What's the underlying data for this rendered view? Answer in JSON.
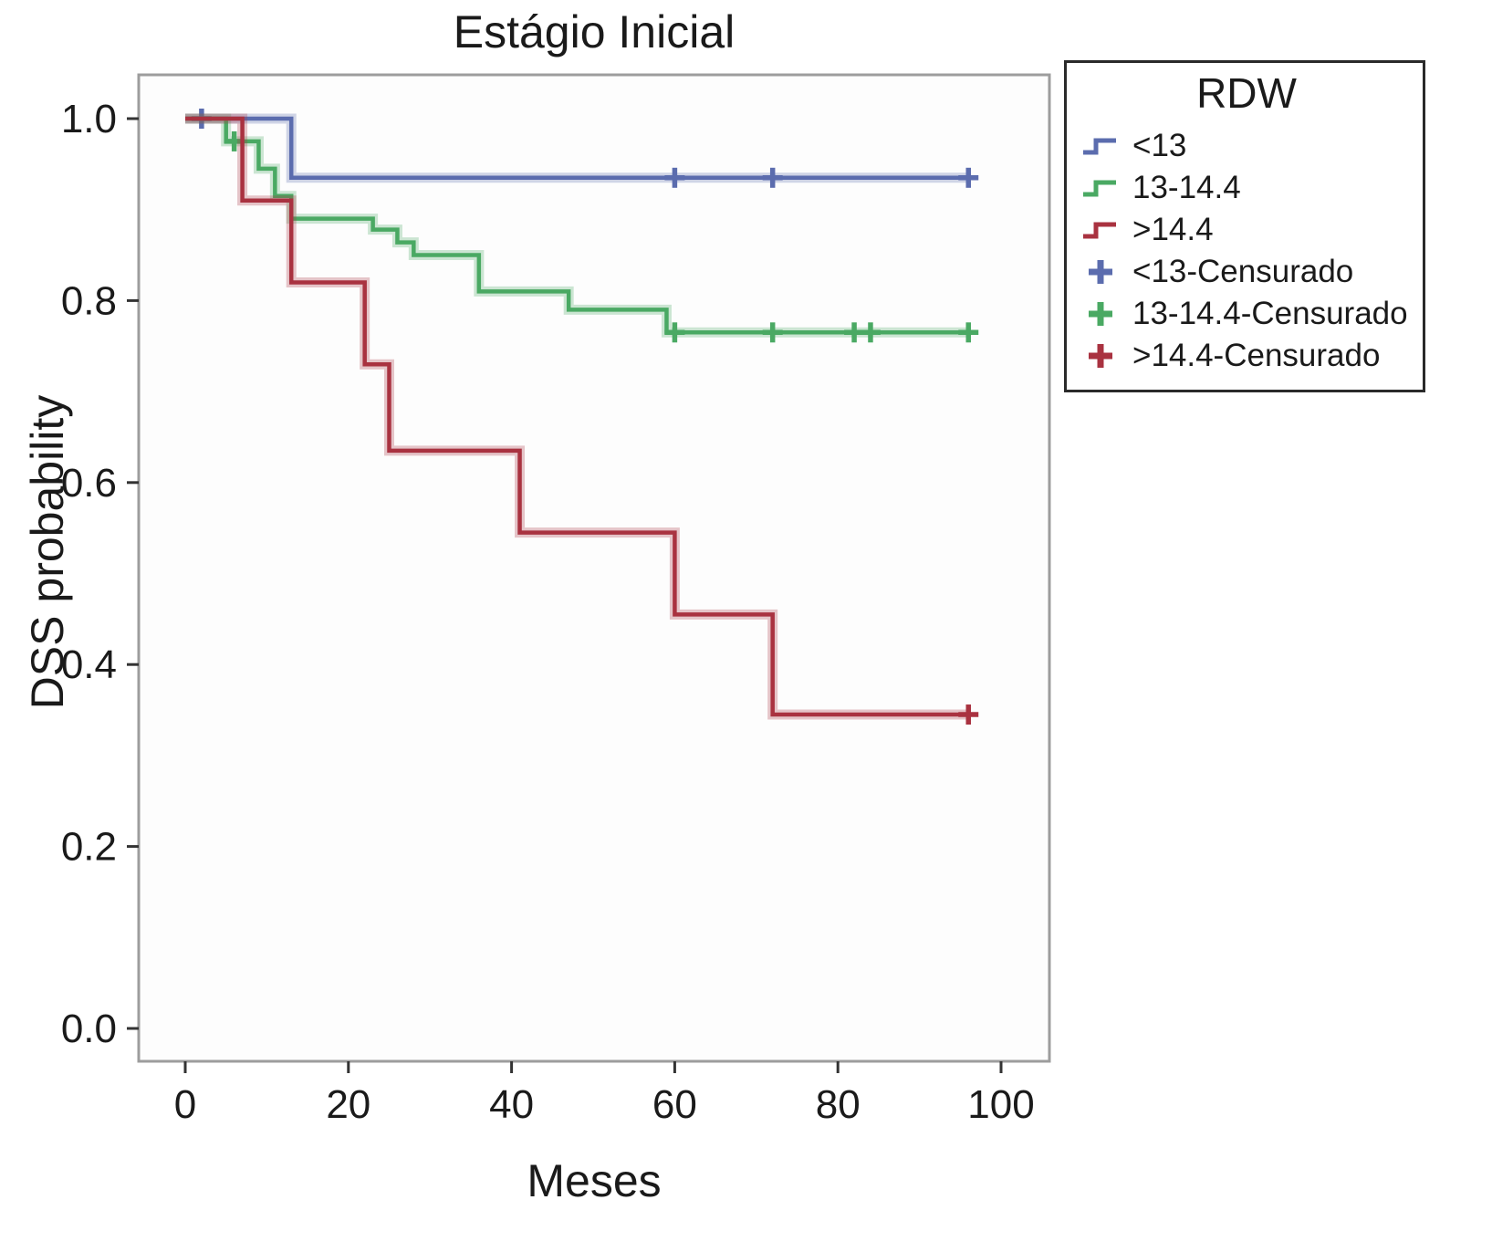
{
  "chart_data": {
    "type": "line",
    "subtype": "kaplan-meier-step",
    "title": "Estágio Inicial",
    "xlabel": "Meses",
    "ylabel": "DSS probability",
    "xlim": [
      -5,
      105
    ],
    "ylim": [
      -0.04,
      1.05
    ],
    "xticks": [
      0,
      20,
      40,
      60,
      80,
      100
    ],
    "xticklabels": [
      "0",
      "20",
      "40",
      "60",
      "80",
      "100"
    ],
    "yticks": [
      0.0,
      0.2,
      0.4,
      0.6,
      0.8,
      1.0
    ],
    "yticklabels": [
      "0.0",
      "0.2",
      "0.4",
      "0.6",
      "0.8",
      "1.0"
    ],
    "grid": false,
    "plot_bg": "#fdfdfd",
    "frame_color": "#9d9d9d",
    "tick_color": "#333333",
    "text_color": "#1a1a1a",
    "legend": {
      "title": "RDW",
      "position": "upper-right-outside",
      "entries": [
        {
          "label": "<13",
          "color": "#5b6cae",
          "marker": "step-line"
        },
        {
          "label": "13-14.4",
          "color": "#4aa963",
          "marker": "step-line"
        },
        {
          "label": ">14.4",
          "color": "#a93240",
          "marker": "step-line"
        },
        {
          "label": "<13-Censurado",
          "color": "#5b6cae",
          "marker": "plus"
        },
        {
          "label": "13-14.4-Censurado",
          "color": "#4aa963",
          "marker": "plus"
        },
        {
          "label": ">14.4-Censurado",
          "color": "#a93240",
          "marker": "plus"
        }
      ]
    },
    "series": [
      {
        "name": "<13",
        "color": "#5b6cae",
        "steps": [
          [
            0,
            1.0
          ],
          [
            13,
            1.0
          ],
          [
            13,
            0.935
          ],
          [
            96,
            0.935
          ]
        ],
        "censored": [
          [
            2,
            1.0
          ],
          [
            60,
            0.935
          ],
          [
            72,
            0.935
          ],
          [
            96,
            0.935
          ]
        ]
      },
      {
        "name": "13-14.4",
        "color": "#4aa963",
        "steps": [
          [
            0,
            1.0
          ],
          [
            5,
            1.0
          ],
          [
            5,
            0.975
          ],
          [
            9,
            0.975
          ],
          [
            9,
            0.945
          ],
          [
            11,
            0.945
          ],
          [
            11,
            0.915
          ],
          [
            13,
            0.915
          ],
          [
            13,
            0.89
          ],
          [
            23,
            0.89
          ],
          [
            23,
            0.878
          ],
          [
            26,
            0.878
          ],
          [
            26,
            0.864
          ],
          [
            28,
            0.864
          ],
          [
            28,
            0.85
          ],
          [
            36,
            0.85
          ],
          [
            36,
            0.81
          ],
          [
            47,
            0.81
          ],
          [
            47,
            0.79
          ],
          [
            59,
            0.79
          ],
          [
            59,
            0.765
          ],
          [
            96,
            0.765
          ]
        ],
        "censored": [
          [
            6,
            0.975
          ],
          [
            60,
            0.765
          ],
          [
            72,
            0.765
          ],
          [
            82,
            0.765
          ],
          [
            84,
            0.765
          ],
          [
            96,
            0.765
          ]
        ]
      },
      {
        "name": ">14.4",
        "color": "#a93240",
        "steps": [
          [
            0,
            1.0
          ],
          [
            7,
            1.0
          ],
          [
            7,
            0.91
          ],
          [
            13,
            0.91
          ],
          [
            13,
            0.82
          ],
          [
            22,
            0.82
          ],
          [
            22,
            0.73
          ],
          [
            25,
            0.73
          ],
          [
            25,
            0.635
          ],
          [
            41,
            0.635
          ],
          [
            41,
            0.545
          ],
          [
            60,
            0.545
          ],
          [
            60,
            0.455
          ],
          [
            72,
            0.455
          ],
          [
            72,
            0.345
          ],
          [
            96,
            0.345
          ]
        ],
        "censored": [
          [
            96,
            0.345
          ]
        ]
      }
    ]
  }
}
